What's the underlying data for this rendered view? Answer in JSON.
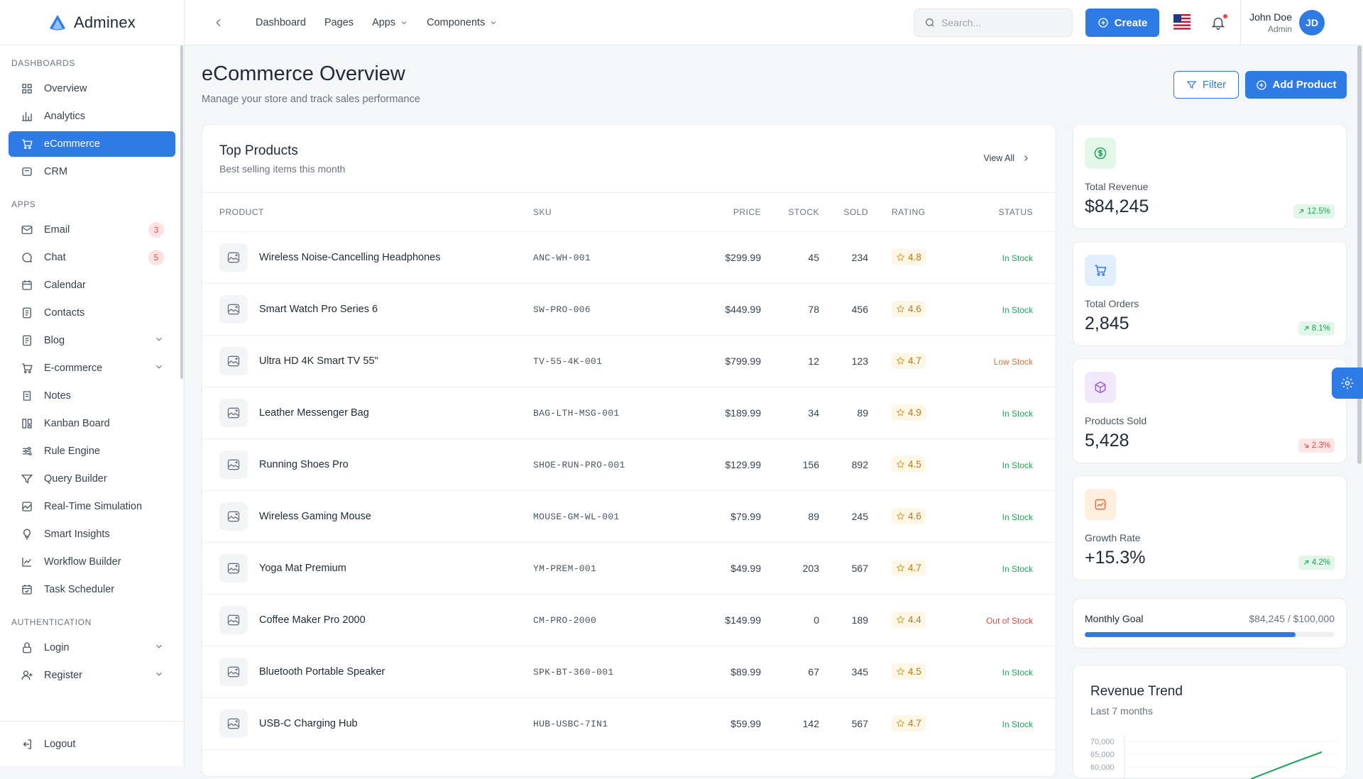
{
  "brand": {
    "name": "Adminex"
  },
  "sidebar": {
    "sections": [
      {
        "title": "Dashboards",
        "items": [
          {
            "label": "Overview",
            "icon": "grid-icon"
          },
          {
            "label": "Analytics",
            "icon": "bar-chart-icon"
          },
          {
            "label": "eCommerce",
            "icon": "cart-icon",
            "active": true
          },
          {
            "label": "CRM",
            "icon": "crm-icon"
          }
        ]
      },
      {
        "title": "Apps",
        "items": [
          {
            "label": "Email",
            "icon": "mail-icon",
            "badge": "3"
          },
          {
            "label": "Chat",
            "icon": "chat-icon",
            "badge": "5"
          },
          {
            "label": "Calendar",
            "icon": "calendar-icon"
          },
          {
            "label": "Contacts",
            "icon": "contacts-icon"
          },
          {
            "label": "Blog",
            "icon": "blog-icon",
            "expandable": true
          },
          {
            "label": "E-commerce",
            "icon": "cart-icon",
            "expandable": true
          },
          {
            "label": "Notes",
            "icon": "notes-icon"
          },
          {
            "label": "Kanban Board",
            "icon": "kanban-icon"
          },
          {
            "label": "Rule Engine",
            "icon": "sliders-icon"
          },
          {
            "label": "Query Builder",
            "icon": "funnel-icon"
          },
          {
            "label": "Real-Time Simulation",
            "icon": "activity-icon"
          },
          {
            "label": "Smart Insights",
            "icon": "bulb-icon"
          },
          {
            "label": "Workflow Builder",
            "icon": "line-chart-icon"
          },
          {
            "label": "Task Scheduler",
            "icon": "calendar-check-icon"
          }
        ]
      },
      {
        "title": "Authentication",
        "items": [
          {
            "label": "Login",
            "icon": "lock-icon",
            "expandable": true
          },
          {
            "label": "Register",
            "icon": "user-add-icon",
            "expandable": true
          }
        ]
      }
    ],
    "footer": {
      "label": "Logout",
      "icon": "logout-icon"
    }
  },
  "topbar": {
    "nav": [
      {
        "label": "Dashboard"
      },
      {
        "label": "Pages"
      },
      {
        "label": "Apps",
        "dropdown": true
      },
      {
        "label": "Components",
        "dropdown": true
      }
    ],
    "search_placeholder": "Search...",
    "create_label": "Create",
    "user": {
      "name": "John Doe",
      "role": "Admin",
      "initials": "JD"
    }
  },
  "page": {
    "title": "eCommerce Overview",
    "subtitle": "Manage your store and track sales performance",
    "filter_label": "Filter",
    "add_label": "Add Product"
  },
  "products": {
    "title": "Top Products",
    "subtitle": "Best selling items this month",
    "view_all": "View All",
    "columns": [
      "Product",
      "SKU",
      "Price",
      "Stock",
      "Sold",
      "Rating",
      "Status"
    ],
    "rows": [
      {
        "name": "Wireless Noise-Cancelling Headphones",
        "sku": "ANC-WH-001",
        "price": "$299.99",
        "stock": "45",
        "sold": "234",
        "rating": "4.8",
        "status": "In Stock",
        "status_type": "in"
      },
      {
        "name": "Smart Watch Pro Series 6",
        "sku": "SW-PRO-006",
        "price": "$449.99",
        "stock": "78",
        "sold": "456",
        "rating": "4.6",
        "status": "In Stock",
        "status_type": "in"
      },
      {
        "name": "Ultra HD 4K Smart TV 55\"",
        "sku": "TV-55-4K-001",
        "price": "$799.99",
        "stock": "12",
        "sold": "123",
        "rating": "4.7",
        "status": "Low Stock",
        "status_type": "low"
      },
      {
        "name": "Leather Messenger Bag",
        "sku": "BAG-LTH-MSG-001",
        "price": "$189.99",
        "stock": "34",
        "sold": "89",
        "rating": "4.9",
        "status": "In Stock",
        "status_type": "in"
      },
      {
        "name": "Running Shoes Pro",
        "sku": "SHOE-RUN-PRO-001",
        "price": "$129.99",
        "stock": "156",
        "sold": "892",
        "rating": "4.5",
        "status": "In Stock",
        "status_type": "in"
      },
      {
        "name": "Wireless Gaming Mouse",
        "sku": "MOUSE-GM-WL-001",
        "price": "$79.99",
        "stock": "89",
        "sold": "245",
        "rating": "4.6",
        "status": "In Stock",
        "status_type": "in"
      },
      {
        "name": "Yoga Mat Premium",
        "sku": "YM-PREM-001",
        "price": "$49.99",
        "stock": "203",
        "sold": "567",
        "rating": "4.7",
        "status": "In Stock",
        "status_type": "in"
      },
      {
        "name": "Coffee Maker Pro 2000",
        "sku": "CM-PRO-2000",
        "price": "$149.99",
        "stock": "0",
        "sold": "189",
        "rating": "4.4",
        "status": "Out of Stock",
        "status_type": "out"
      },
      {
        "name": "Bluetooth Portable Speaker",
        "sku": "SPK-BT-360-001",
        "price": "$89.99",
        "stock": "67",
        "sold": "345",
        "rating": "4.5",
        "status": "In Stock",
        "status_type": "in"
      },
      {
        "name": "USB-C Charging Hub",
        "sku": "HUB-USBC-7IN1",
        "price": "$59.99",
        "stock": "142",
        "sold": "567",
        "rating": "4.7",
        "status": "In Stock",
        "status_type": "in"
      }
    ]
  },
  "stats": [
    {
      "label": "Total Revenue",
      "value": "$84,245",
      "delta": "12.5%",
      "direction": "up",
      "icon": "dollar-icon",
      "color": "#22a35a",
      "bg": "#e3f6ea"
    },
    {
      "label": "Total Orders",
      "value": "2,845",
      "delta": "8.1%",
      "direction": "up",
      "icon": "cart-icon",
      "color": "#2f7be5",
      "bg": "#e3eefc"
    },
    {
      "label": "Products Sold",
      "value": "5,428",
      "delta": "2.3%",
      "direction": "down",
      "icon": "box-icon",
      "color": "#9b5de5",
      "bg": "#f1e8fc"
    },
    {
      "label": "Growth Rate",
      "value": "+15.3%",
      "delta": "4.2%",
      "direction": "up",
      "icon": "trend-icon",
      "color": "#e0703b",
      "bg": "#fdeede"
    }
  ],
  "goal": {
    "label": "Monthly Goal",
    "value": "$84,245 / $100,000",
    "fraction": 0.84245
  },
  "trend": {
    "title": "Revenue Trend",
    "subtitle": "Last 7 months"
  },
  "chart_data": {
    "type": "line",
    "title": "Revenue Trend",
    "subtitle": "Last 7 months",
    "y_ticks": [
      "70,000",
      "65,000",
      "60,000"
    ],
    "series_color": "#22a35a"
  },
  "colors": {
    "accent": "#2f7be5",
    "success": "#22a35a",
    "warning": "#e0703b",
    "danger": "#e04b4b"
  }
}
